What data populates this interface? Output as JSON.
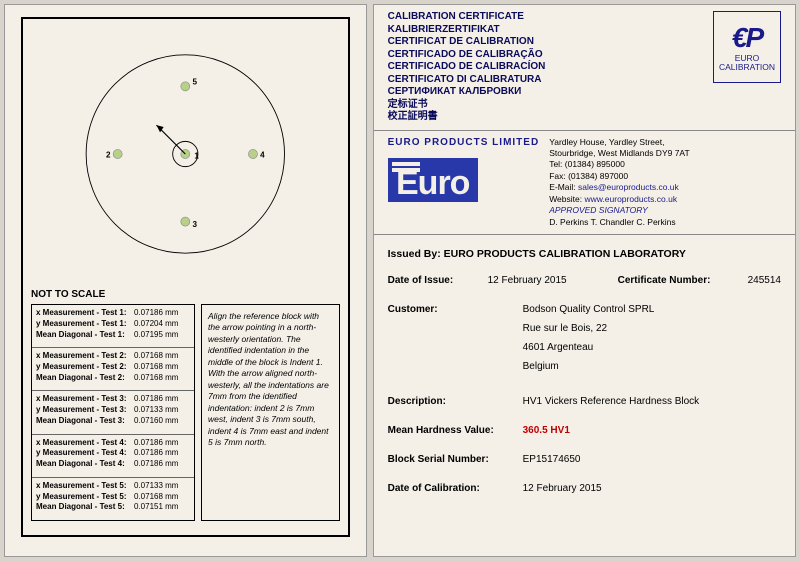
{
  "left": {
    "not_to_scale": "NOT TO SCALE",
    "diagram": {
      "circle_color": "#000",
      "indent_fill": "#b8d088",
      "labels": [
        "1",
        "2",
        "3",
        "4",
        "5"
      ]
    },
    "tests": [
      {
        "rows": [
          {
            "l": "x Measurement - Test 1:",
            "v": "0.07186 mm"
          },
          {
            "l": "y Measurement - Test 1:",
            "v": "0.07204 mm"
          },
          {
            "l": "Mean Diagonal - Test 1:",
            "v": "0.07195 mm"
          }
        ]
      },
      {
        "rows": [
          {
            "l": "x Measurement - Test 2:",
            "v": "0.07168 mm"
          },
          {
            "l": "y Measurement - Test 2:",
            "v": "0.07168 mm"
          },
          {
            "l": "Mean Diagonal - Test 2:",
            "v": "0.07168 mm"
          }
        ]
      },
      {
        "rows": [
          {
            "l": "x Measurement - Test 3:",
            "v": "0.07186 mm"
          },
          {
            "l": "y Measurement - Test 3:",
            "v": "0.07133 mm"
          },
          {
            "l": "Mean Diagonal - Test 3:",
            "v": "0.07160 mm"
          }
        ]
      },
      {
        "rows": [
          {
            "l": "x Measurement - Test 4:",
            "v": "0.07186 mm"
          },
          {
            "l": "y Measurement - Test 4:",
            "v": "0.07186 mm"
          },
          {
            "l": "Mean Diagonal - Test 4:",
            "v": "0.07186 mm"
          }
        ]
      },
      {
        "rows": [
          {
            "l": "x Measurement - Test 5:",
            "v": "0.07133 mm"
          },
          {
            "l": "y Measurement - Test 5:",
            "v": "0.07168 mm"
          },
          {
            "l": "Mean Diagonal - Test 5:",
            "v": "0.07151 mm"
          }
        ]
      }
    ],
    "instructions": "Align the reference block with the arrow pointing in a north-westerly orientation. The identified indentation in the middle of the block is Indent 1. With the arrow aligned north-westerly, all the indentations are 7mm from the identified indentation: indent 2 is 7mm west, indent 3 is 7mm south, indent 4 is 7mm east and indent 5 is 7mm north."
  },
  "right": {
    "cert_titles": [
      "CALIBRATION CERTIFICATE",
      "KALIBRIERZERTIFIKAT",
      "CERTIFICAT DE CALIBRATION",
      "CERTIFICADO DE CALIBRAÇÃO",
      "CERTIFICADO DE CALIBRACÍON",
      "CERTIFICATO DI CALIBRATURA",
      "СЕРТИФИКАТ КАЛБРОВКИ",
      "定标证书",
      "校正証明書"
    ],
    "ep_logo": {
      "top": "€P",
      "bottom": "EURO CALIBRATION"
    },
    "company_title": "EURO PRODUCTS LIMITED",
    "address": {
      "l1": "Yardley House, Yardley Street,",
      "l2": "Stourbridge, West Midlands DY9 7AT",
      "tel": "Tel:   (01384) 895000",
      "fax": "Fax:  (01384) 897000",
      "em_l": "E-Mail:",
      "em_v": "sales@europroducts.co.uk",
      "web_l": "Website:",
      "web_v": "www.europroducts.co.uk",
      "sig": "APPROVED SIGNATORY",
      "signers": "D. Perkins      T. Chandler      C. Perkins"
    },
    "issued_by": "Issued By: EURO PRODUCTS CALIBRATION LABORATORY",
    "date_issue_l": "Date of Issue:",
    "date_issue_v": "12 February 2015",
    "cert_num_l": "Certificate Number:",
    "cert_num_v": "245514",
    "customer_l": "Customer:",
    "customer": [
      "Bodson Quality Control SPRL",
      "Rue sur le Bois, 22",
      "4601 Argenteau",
      "Belgium"
    ],
    "desc_l": "Description:",
    "desc_v": "HV1  Vickers Reference Hardness Block",
    "mean_l": "Mean Hardness Value:",
    "mean_v": "360.5 HV1",
    "serial_l": "Block Serial Number:",
    "serial_v": "EP15174650",
    "cal_date_l": "Date of Calibration:",
    "cal_date_v": "12 February 2015"
  }
}
